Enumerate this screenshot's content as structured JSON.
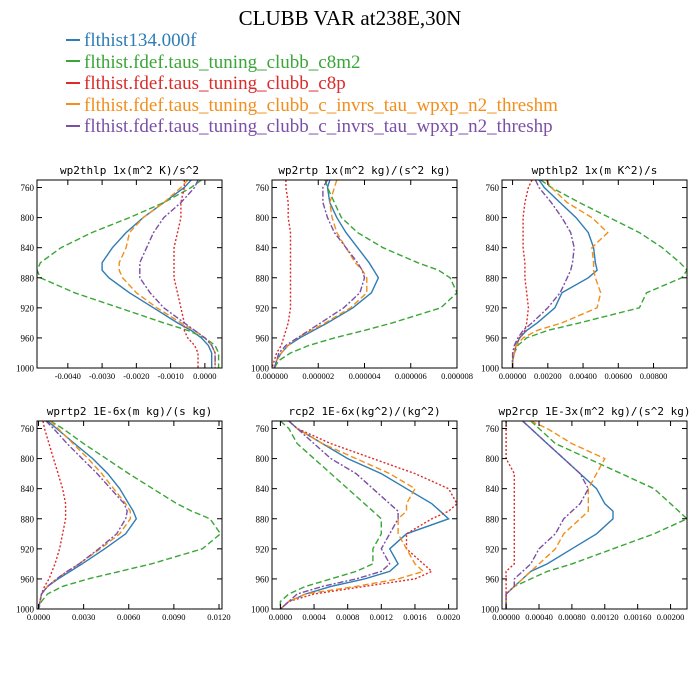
{
  "title": "CLUBB VAR at238E,30N",
  "legend": [
    {
      "label": "flthist134.000f",
      "color": "#2e7db5"
    },
    {
      "label": "flthist.fdef.taus_tuning_clubb_c8m2",
      "color": "#3aa637"
    },
    {
      "label": "flthist.fdef.taus_tuning_clubb_c8p",
      "color": "#dd2a2a"
    },
    {
      "label": "flthist.fdef.taus_tuning_clubb_c_invrs_tau_wpxp_n2_threshm",
      "color": "#f28e1c"
    },
    {
      "label": "flthist.fdef.taus_tuning_clubb_c_invrs_tau_wpxp_n2_threshp",
      "color": "#7b4fa6"
    }
  ],
  "chart_data": [
    {
      "type": "line",
      "title": "wp2thlp  1x(m^2 K)/s^2",
      "xlim": [
        -0.0049,
        0.0005
      ],
      "ylim": [
        1000,
        750
      ],
      "y_reversed": true,
      "xticks": [
        -0.004,
        -0.003,
        -0.002,
        -0.001,
        0.0
      ],
      "xtick_labels": [
        "-0.0040",
        "-0.0030",
        "-0.0020",
        "-0.0010",
        "0.0000"
      ],
      "yticks": [
        760,
        800,
        840,
        880,
        920,
        960,
        1000
      ],
      "y": [
        750,
        760,
        780,
        800,
        820,
        840,
        860,
        870,
        880,
        900,
        920,
        940,
        950,
        960,
        970,
        980,
        990,
        1000
      ],
      "series": [
        {
          "name": "flthist134.000f",
          "x": [
            -0.0004,
            -0.0006,
            -0.0012,
            -0.0018,
            -0.0023,
            -0.0027,
            -0.003,
            -0.003,
            -0.0028,
            -0.0022,
            -0.0015,
            -0.0008,
            -0.0004,
            -0.0001,
            0.0001,
            0.0002,
            0.0002,
            0.0002
          ]
        },
        {
          "name": "flthist.fdef.taus_tuning_clubb_c8m2",
          "x": [
            -0.0001,
            -0.0004,
            -0.0012,
            -0.0022,
            -0.0033,
            -0.0042,
            -0.0048,
            -0.0049,
            -0.0048,
            -0.0038,
            -0.0025,
            -0.0012,
            -0.0005,
            0.0,
            0.0003,
            0.0004,
            0.0004,
            0.0004
          ]
        },
        {
          "name": "flthist.fdef.taus_tuning_clubb_c8p",
          "x": [
            -0.0006,
            -0.0006,
            -0.0007,
            -0.0007,
            -0.0008,
            -0.0009,
            -0.0009,
            -0.0009,
            -0.0009,
            -0.0008,
            -0.0007,
            -0.0006,
            -0.0006,
            -0.0005,
            -0.0003,
            -0.0002,
            -0.0002,
            -0.0002
          ]
        },
        {
          "name": "flthist.fdef.taus_tuning_clubb_c_invrs_tau_wpxp_n2_threshm",
          "x": [
            -0.0005,
            -0.0007,
            -0.0012,
            -0.0018,
            -0.0022,
            -0.0023,
            -0.0025,
            -0.0025,
            -0.0024,
            -0.002,
            -0.0014,
            -0.0007,
            -0.0003,
            0.0,
            0.0002,
            0.0003,
            0.0003,
            0.0003
          ]
        },
        {
          "name": "flthist.fdef.taus_tuning_clubb_c_invrs_tau_wpxp_n2_threshp",
          "x": [
            -0.0002,
            -0.0003,
            -0.0007,
            -0.0012,
            -0.0015,
            -0.0017,
            -0.0019,
            -0.0019,
            -0.0019,
            -0.0016,
            -0.0012,
            -0.0006,
            -0.0003,
            0.0,
            0.0002,
            0.0003,
            0.0003,
            0.0003
          ]
        }
      ]
    },
    {
      "type": "line",
      "title": "wp2rtp  1x(m^2 kg)/(s^2 kg)",
      "xlim": [
        0.0,
        8e-06
      ],
      "ylim": [
        1000,
        750
      ],
      "y_reversed": true,
      "xticks": [
        0.0,
        2e-06,
        4e-06,
        6e-06,
        8e-06
      ],
      "xtick_labels": [
        "0.000000",
        "0.000002",
        "0.000004",
        "0.000006",
        "0.000008"
      ],
      "yticks": [
        760,
        800,
        840,
        880,
        920,
        960,
        1000
      ],
      "y": [
        750,
        760,
        780,
        800,
        820,
        840,
        860,
        870,
        880,
        900,
        920,
        940,
        950,
        960,
        970,
        980,
        990,
        1000
      ],
      "series": [
        {
          "name": "flthist134.000f",
          "x": [
            2.5e-06,
            2.4e-06,
            2.5e-06,
            2.8e-06,
            3.2e-06,
            3.7e-06,
            4.2e-06,
            4.4e-06,
            4.6e-06,
            4.3e-06,
            3.5e-06,
            2.4e-06,
            1.8e-06,
            1.2e-06,
            7e-07,
            4e-07,
            2e-07,
            1e-07
          ]
        },
        {
          "name": "flthist.fdef.taus_tuning_clubb_c8m2",
          "x": [
            2.3e-06,
            2.4e-06,
            2.7e-06,
            3e-06,
            3.7e-06,
            4.8e-06,
            6.3e-06,
            7.2e-06,
            7.7e-06,
            8e-06,
            7.3e-06,
            5.2e-06,
            4e-06,
            2.7e-06,
            1.6e-06,
            8e-07,
            3e-07,
            1e-07
          ]
        },
        {
          "name": "flthist.fdef.taus_tuning_clubb_c8p",
          "x": [
            6e-07,
            6e-07,
            7e-07,
            7e-07,
            8e-07,
            8e-07,
            8e-07,
            8e-07,
            8e-07,
            8e-07,
            8e-07,
            7e-07,
            6e-07,
            5e-07,
            4e-07,
            2e-07,
            1e-07,
            0.0
          ]
        },
        {
          "name": "flthist.fdef.taus_tuning_clubb_c_invrs_tau_wpxp_n2_threshm",
          "x": [
            2.8e-06,
            2.7e-06,
            2.5e-06,
            2.6e-06,
            2.8e-06,
            3.2e-06,
            3.6e-06,
            3.9e-06,
            4.1e-06,
            4.1e-06,
            3.4e-06,
            2.3e-06,
            1.7e-06,
            1.1e-06,
            7e-07,
            4e-07,
            2e-07,
            1e-07
          ]
        },
        {
          "name": "flthist.fdef.taus_tuning_clubb_c_invrs_tau_wpxp_n2_threshp",
          "x": [
            2.4e-06,
            2.2e-06,
            2.2e-06,
            2.4e-06,
            2.7e-06,
            3.2e-06,
            3.7e-06,
            3.9e-06,
            4e-06,
            3.8e-06,
            3.1e-06,
            2.1e-06,
            1.6e-06,
            1.1e-06,
            6e-07,
            3e-07,
            2e-07,
            1e-07
          ]
        }
      ]
    },
    {
      "type": "line",
      "title": "wpthlp2  1x(m K^2)/s",
      "xlim": [
        -0.0006,
        0.0099
      ],
      "ylim": [
        1000,
        750
      ],
      "y_reversed": true,
      "xticks": [
        0.0,
        0.002,
        0.004,
        0.006,
        0.008
      ],
      "xtick_labels": [
        "0.00000",
        "0.00200",
        "0.00400",
        "0.00600",
        "0.00800"
      ],
      "yticks": [
        760,
        800,
        840,
        880,
        920,
        960,
        1000
      ],
      "y": [
        750,
        760,
        780,
        800,
        820,
        840,
        860,
        870,
        880,
        900,
        920,
        940,
        950,
        960,
        970,
        980,
        990,
        1000
      ],
      "series": [
        {
          "name": "flthist134.000f",
          "x": [
            0.0015,
            0.0018,
            0.0027,
            0.0036,
            0.0043,
            0.0046,
            0.0047,
            0.0048,
            0.0043,
            0.0028,
            0.0024,
            0.0014,
            0.0008,
            0.0004,
            0.0002,
            0.0001,
            0.0,
            0.0
          ]
        },
        {
          "name": "flthist.fdef.taus_tuning_clubb_c8m2",
          "x": [
            0.0016,
            0.0022,
            0.0038,
            0.0055,
            0.0072,
            0.0085,
            0.0095,
            0.0099,
            0.0096,
            0.0076,
            0.0072,
            0.0038,
            0.002,
            0.0008,
            0.0003,
            0.0001,
            0.0,
            0.0
          ]
        },
        {
          "name": "flthist.fdef.taus_tuning_clubb_c8p",
          "x": [
            0.0011,
            0.0009,
            0.0007,
            0.0006,
            0.0006,
            0.0006,
            0.0007,
            0.0007,
            0.0007,
            0.0008,
            0.0009,
            0.0008,
            0.0007,
            0.0004,
            0.0002,
            0.0001,
            0.0,
            0.0
          ]
        },
        {
          "name": "flthist.fdef.taus_tuning_clubb_c_invrs_tau_wpxp_n2_threshm",
          "x": [
            0.0019,
            0.0022,
            0.0031,
            0.0045,
            0.0054,
            0.0045,
            0.0046,
            0.0046,
            0.0047,
            0.005,
            0.0048,
            0.0028,
            0.0014,
            0.0006,
            0.0002,
            0.0001,
            0.0,
            0.0
          ]
        },
        {
          "name": "flthist.fdef.taus_tuning_clubb_c_invrs_tau_wpxp_n2_threshp",
          "x": [
            0.0013,
            0.0015,
            0.0022,
            0.0028,
            0.0033,
            0.0035,
            0.0034,
            0.0033,
            0.0031,
            0.0027,
            0.002,
            0.0011,
            0.0006,
            0.0003,
            0.0001,
            0.0,
            0.0,
            0.0
          ]
        }
      ]
    },
    {
      "type": "line",
      "title": "wprtp2  1E-6x(m kg)/(s kg)",
      "xlim": [
        -0.0001,
        0.0122
      ],
      "ylim": [
        1000,
        750
      ],
      "y_reversed": true,
      "xticks": [
        0.0,
        0.003,
        0.006,
        0.009,
        0.012
      ],
      "xtick_labels": [
        "0.0000",
        "0.0030",
        "0.0060",
        "0.0090",
        "0.0120"
      ],
      "yticks": [
        760,
        800,
        840,
        880,
        920,
        960,
        1000
      ],
      "y": [
        750,
        760,
        780,
        800,
        820,
        840,
        860,
        870,
        880,
        900,
        920,
        940,
        950,
        960,
        970,
        980,
        990,
        1000
      ],
      "series": [
        {
          "name": "flthist134.000f",
          "x": [
            0.0006,
            0.0012,
            0.0024,
            0.0036,
            0.0046,
            0.0054,
            0.006,
            0.0063,
            0.0065,
            0.0058,
            0.0044,
            0.0029,
            0.0021,
            0.0013,
            0.0006,
            0.0002,
            0.0001,
            0.0
          ]
        },
        {
          "name": "flthist.fdef.taus_tuning_clubb_c8m2",
          "x": [
            0.0008,
            0.0016,
            0.003,
            0.0045,
            0.006,
            0.0076,
            0.0092,
            0.0102,
            0.0114,
            0.0121,
            0.0109,
            0.0075,
            0.0054,
            0.0033,
            0.0016,
            0.0006,
            0.0002,
            0.0
          ]
        },
        {
          "name": "flthist.fdef.taus_tuning_clubb_c8p",
          "x": [
            0.0003,
            0.0004,
            0.0007,
            0.001,
            0.0013,
            0.0016,
            0.0018,
            0.0018,
            0.0018,
            0.0016,
            0.0014,
            0.0011,
            0.0009,
            0.0007,
            0.0004,
            0.0002,
            0.0001,
            0.0
          ]
        },
        {
          "name": "flthist.fdef.taus_tuning_clubb_c_invrs_tau_wpxp_n2_threshm",
          "x": [
            0.0008,
            0.0013,
            0.0023,
            0.0033,
            0.0042,
            0.005,
            0.0058,
            0.0061,
            0.0061,
            0.0054,
            0.0041,
            0.0027,
            0.0019,
            0.0012,
            0.0006,
            0.0002,
            0.0001,
            0.0
          ]
        },
        {
          "name": "flthist.fdef.taus_tuning_clubb_c_invrs_tau_wpxp_n2_threshp",
          "x": [
            0.0005,
            0.001,
            0.0019,
            0.0029,
            0.0039,
            0.0048,
            0.0057,
            0.0059,
            0.0058,
            0.0052,
            0.004,
            0.0027,
            0.0019,
            0.0012,
            0.0006,
            0.0002,
            0.0001,
            0.0
          ]
        }
      ]
    },
    {
      "type": "line",
      "title": "rcp2  1E-6x(kg^2)/(kg^2)",
      "xlim": [
        -0.0001,
        0.0021
      ],
      "ylim": [
        1000,
        750
      ],
      "y_reversed": true,
      "xticks": [
        0.0,
        0.0004,
        0.0008,
        0.0012,
        0.0016,
        0.002
      ],
      "xtick_labels": [
        "0.0000",
        "0.0004",
        "0.0008",
        "0.0012",
        "0.0016",
        "0.0020"
      ],
      "yticks": [
        760,
        800,
        840,
        880,
        920,
        960,
        1000
      ],
      "y": [
        750,
        760,
        780,
        800,
        820,
        840,
        860,
        870,
        880,
        900,
        920,
        940,
        950,
        960,
        970,
        980,
        990,
        1000
      ],
      "series": [
        {
          "name": "flthist134.000f",
          "x": [
            0.0001,
            0.0002,
            0.0005,
            0.0008,
            0.0012,
            0.0015,
            0.0018,
            0.0019,
            0.002,
            0.0015,
            0.0013,
            0.0014,
            0.0013,
            0.001,
            0.0006,
            0.0003,
            0.0001,
            0.0
          ]
        },
        {
          "name": "flthist.fdef.taus_tuning_clubb_c8m2",
          "x": [
            0.0,
            0.0001,
            0.0002,
            0.0004,
            0.0006,
            0.0008,
            0.001,
            0.0011,
            0.0012,
            0.0012,
            0.0011,
            0.0011,
            0.0009,
            0.0006,
            0.0003,
            0.0001,
            0.0,
            0.0
          ]
        },
        {
          "name": "flthist.fdef.taus_tuning_clubb_c8p",
          "x": [
            0.0001,
            0.0002,
            0.0006,
            0.0011,
            0.0016,
            0.002,
            0.0021,
            0.002,
            0.0018,
            0.0015,
            0.0015,
            0.0017,
            0.0018,
            0.0016,
            0.001,
            0.0004,
            0.0001,
            0.0
          ]
        },
        {
          "name": "flthist.fdef.taus_tuning_clubb_c_invrs_tau_wpxp_n2_threshm",
          "x": [
            0.0001,
            0.0002,
            0.0005,
            0.0009,
            0.0013,
            0.0016,
            0.0015,
            0.0015,
            0.0014,
            0.0014,
            0.0015,
            0.0016,
            0.0017,
            0.0014,
            0.0009,
            0.0003,
            0.0001,
            0.0
          ]
        },
        {
          "name": "flthist.fdef.taus_tuning_clubb_c_invrs_tau_wpxp_n2_threshp",
          "x": [
            0.0001,
            0.0002,
            0.0004,
            0.0006,
            0.0009,
            0.0011,
            0.0013,
            0.0014,
            0.0014,
            0.0013,
            0.0012,
            0.0013,
            0.0012,
            0.0009,
            0.0005,
            0.0002,
            0.0001,
            0.0
          ]
        }
      ]
    },
    {
      "type": "line",
      "title": "wp2rcp  1E-3x(m^2 kg)/(s^2 kg)",
      "xlim": [
        -5e-05,
        0.0022
      ],
      "ylim": [
        1000,
        750
      ],
      "y_reversed": true,
      "xticks": [
        0.0,
        0.0004,
        0.0008,
        0.0012,
        0.0016,
        0.002
      ],
      "xtick_labels": [
        "0.00000",
        "0.00040",
        "0.00080",
        "0.00120",
        "0.00160",
        "0.00200"
      ],
      "yticks": [
        760,
        800,
        840,
        880,
        920,
        960,
        1000
      ],
      "y": [
        750,
        760,
        780,
        800,
        820,
        840,
        860,
        870,
        880,
        900,
        920,
        940,
        950,
        960,
        970,
        980,
        990,
        1000
      ],
      "series": [
        {
          "name": "flthist134.000f",
          "x": [
            0.0002,
            0.0003,
            0.0005,
            0.0007,
            0.0009,
            0.0011,
            0.0012,
            0.0013,
            0.0013,
            0.0011,
            0.0008,
            0.0005,
            0.0003,
            0.0002,
            0.0001,
            0.0,
            0.0,
            0.0
          ]
        },
        {
          "name": "flthist.fdef.taus_tuning_clubb_c8m2",
          "x": [
            0.0003,
            0.0004,
            0.0006,
            0.001,
            0.0014,
            0.0018,
            0.002,
            0.0021,
            0.0022,
            0.0018,
            0.0013,
            0.0008,
            0.0005,
            0.0003,
            0.0001,
            0.0,
            0.0,
            0.0
          ]
        },
        {
          "name": "flthist.fdef.taus_tuning_clubb_c8p",
          "x": [
            0.0,
            0.0,
            0.0,
            0.0,
            0.0001,
            0.0001,
            0.0001,
            0.0001,
            0.0001,
            0.0001,
            0.0001,
            0.0001,
            0.0,
            0.0,
            0.0,
            0.0,
            0.0,
            0.0
          ]
        },
        {
          "name": "flthist.fdef.taus_tuning_clubb_c_invrs_tau_wpxp_n2_threshm",
          "x": [
            0.0003,
            0.0005,
            0.0008,
            0.0012,
            0.0011,
            0.001,
            0.001,
            0.001,
            0.0009,
            0.0007,
            0.0006,
            0.0004,
            0.0003,
            0.0002,
            0.0001,
            0.0,
            0.0,
            0.0
          ]
        },
        {
          "name": "flthist.fdef.taus_tuning_clubb_c_invrs_tau_wpxp_n2_threshp",
          "x": [
            0.0002,
            0.0003,
            0.0005,
            0.0007,
            0.0009,
            0.001,
            0.0009,
            0.0008,
            0.0007,
            0.0006,
            0.0004,
            0.0003,
            0.0002,
            0.0001,
            0.0001,
            0.0,
            0.0,
            0.0
          ]
        }
      ]
    }
  ]
}
